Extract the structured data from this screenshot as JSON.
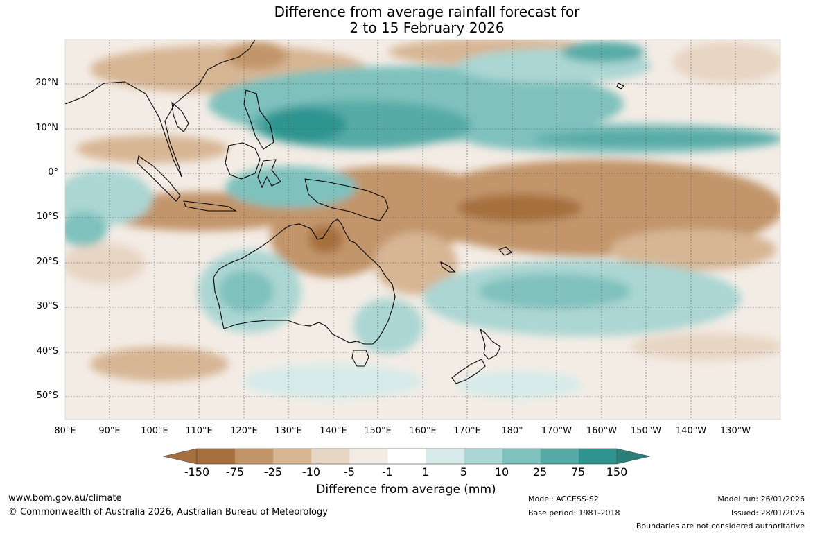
{
  "title": {
    "line1": "Difference from average rainfall forecast for",
    "line2": "2 to 15 February 2026"
  },
  "map": {
    "region": "Australia and western Pacific",
    "lat_range": [
      -55,
      30
    ],
    "lon_range": [
      80,
      240
    ],
    "lat_labels": [
      "20°N",
      "10°N",
      "0°",
      "10°S",
      "20°S",
      "30°S",
      "40°S",
      "50°S"
    ],
    "lon_labels": [
      "80°E",
      "90°E",
      "100°E",
      "110°E",
      "120°E",
      "130°E",
      "140°E",
      "150°E",
      "160°E",
      "170°E",
      "180°",
      "170°W",
      "160°W",
      "150°W",
      "140°W",
      "130°W"
    ],
    "grid": true,
    "colors": {
      "dry_strong": "#a66f3e",
      "dry_mod": "#c2956b",
      "dry_light": "#d7b694",
      "dry_weak": "#e8d6c4",
      "dry_faint": "#f3ece5",
      "neutral": "#ffffff",
      "wet_faint": "#d6ebe9",
      "wet_weak": "#abd6d3",
      "wet_light": "#7fc1bd",
      "wet_mod": "#57aba7",
      "wet_strong": "#2f9490"
    }
  },
  "colorbar": {
    "ticks": [
      "-150",
      "-75",
      "-25",
      "-10",
      "-5",
      "-1",
      "1",
      "5",
      "10",
      "25",
      "75",
      "150"
    ],
    "colors": [
      "#a66f3e",
      "#c2956b",
      "#d7b694",
      "#e8d6c4",
      "#f3ece5",
      "#ffffff",
      "#d6ebe9",
      "#abd6d3",
      "#7fc1bd",
      "#57aba7",
      "#2f9490"
    ],
    "extend_low": "#a66f3e",
    "extend_high": "#2a7f7b",
    "label": "Difference from average (mm)"
  },
  "footer": {
    "url": "www.bom.gov.au/climate",
    "copyright": "© Commonwealth of Australia 2026, Australian Bureau of Meteorology",
    "model": "Model: ACCESS-S2",
    "base_period": "Base period: 1981-2018",
    "model_run": "Model run: 26/01/2026",
    "issued": "Issued: 28/01/2026",
    "disclaimer": "Boundaries are not considered authoritative"
  }
}
